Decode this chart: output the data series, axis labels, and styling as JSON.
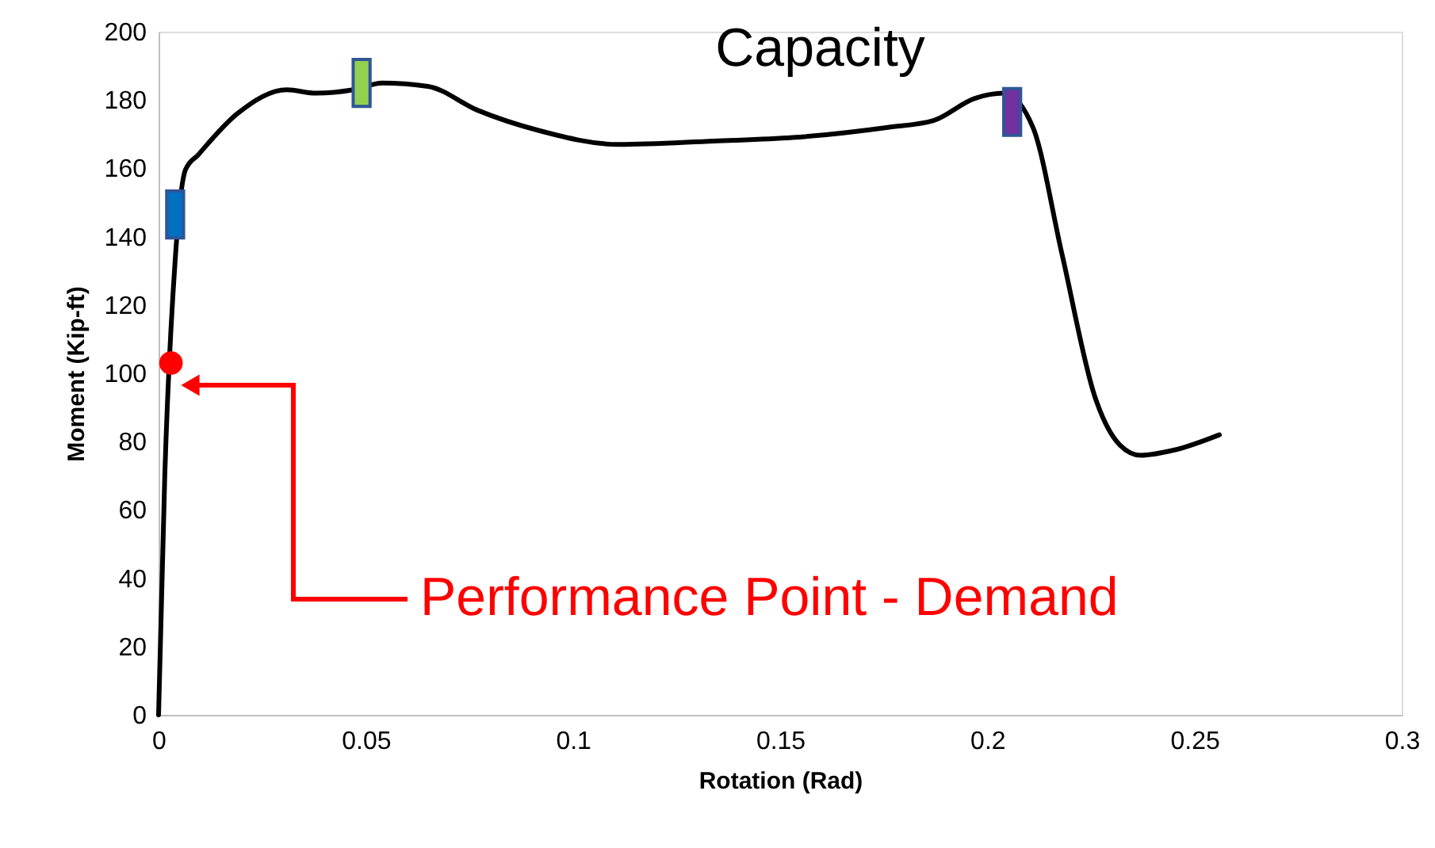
{
  "chart_data": {
    "type": "line",
    "xlabel": "Rotation (Rad)",
    "ylabel": "Moment (Kip-ft)",
    "xlim": [
      0,
      0.3
    ],
    "xticks": [
      0,
      0.05,
      0.1,
      0.15,
      0.2,
      0.25,
      0.3
    ],
    "ylim": [
      0,
      200
    ],
    "yticks": [
      0,
      20,
      40,
      60,
      80,
      100,
      120,
      140,
      160,
      180,
      200
    ],
    "grid": false,
    "series": [
      {
        "name": "Capacity",
        "color": "#000000",
        "line_style": "solid",
        "marker": "none",
        "x": [
          0,
          0.0015,
          0.004,
          0.0065,
          0.0096,
          0.019,
          0.031,
          0.038,
          0.047,
          0.054,
          0.065,
          0.077,
          0.092,
          0.111,
          0.134,
          0.153,
          0.176,
          0.187,
          0.197,
          0.204,
          0.211,
          0.218,
          0.226,
          0.232,
          0.237,
          0.245,
          0.256
        ],
        "values": [
          0,
          70,
          133,
          159.6,
          164,
          176,
          183,
          182,
          183,
          185,
          184,
          177,
          171,
          167,
          168,
          169,
          172,
          174,
          180.5,
          182,
          172,
          135,
          93,
          79,
          76,
          77.5,
          82
        ]
      },
      {
        "type": "scatter",
        "marker": "square",
        "x": [
          0.004,
          0.049,
          0.206
        ],
        "values": [
          146.5,
          185,
          176.5
        ],
        "colors": [
          "#0070c0",
          "#92d050",
          "#7030a0"
        ]
      },
      {
        "type": "scatter",
        "marker": "circle",
        "color": "#ff0000",
        "x": [
          0.003
        ],
        "values": [
          103
        ]
      }
    ],
    "annotations": [
      "Performance Point - Demand"
    ]
  }
}
